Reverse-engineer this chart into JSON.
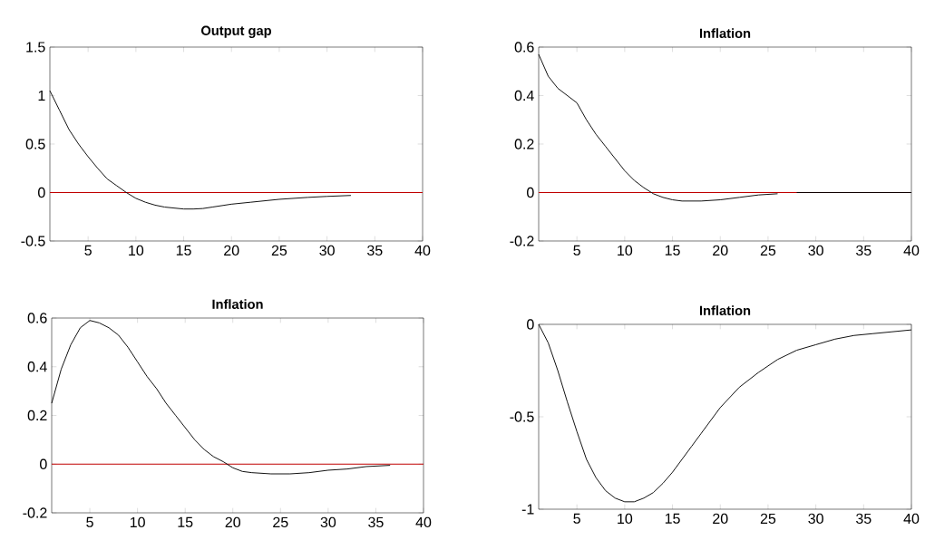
{
  "chart_data": [
    {
      "type": "line",
      "title": "Output gap",
      "xlim": [
        1,
        40
      ],
      "ylim": [
        -0.5,
        1.5
      ],
      "xticks": [
        5,
        10,
        15,
        20,
        25,
        30,
        35,
        40
      ],
      "yticks": [
        -0.5,
        0,
        0.5,
        1,
        1.5
      ],
      "ref_lines": [
        {
          "axis": "y",
          "value": 0,
          "color": "#c00000"
        }
      ],
      "series": [
        {
          "color": "#000000",
          "x": [
            1,
            2,
            3,
            4,
            5,
            6,
            7,
            8,
            9,
            10,
            11,
            12,
            13,
            14,
            15,
            16,
            17,
            18,
            20,
            22,
            25,
            28,
            30,
            32.5
          ],
          "values": [
            1.05,
            0.85,
            0.65,
            0.5,
            0.37,
            0.25,
            0.14,
            0.07,
            0.0,
            -0.06,
            -0.1,
            -0.13,
            -0.15,
            -0.16,
            -0.17,
            -0.17,
            -0.165,
            -0.15,
            -0.12,
            -0.1,
            -0.07,
            -0.05,
            -0.04,
            -0.03
          ]
        }
      ]
    },
    {
      "type": "line",
      "title": "Inflation",
      "xlim": [
        1,
        40
      ],
      "ylim": [
        -0.2,
        0.6
      ],
      "xticks": [
        5,
        10,
        15,
        20,
        25,
        30,
        35,
        40
      ],
      "yticks": [
        -0.2,
        0,
        0.2,
        0.4,
        0.6
      ],
      "ref_lines": [
        {
          "axis": "y",
          "value": 0,
          "color": "#c00000"
        }
      ],
      "series": [
        {
          "color": "#000000",
          "x": [
            1,
            2,
            3,
            4,
            5,
            6,
            7,
            8,
            9,
            10,
            11,
            12,
            13,
            14,
            15,
            16,
            18,
            20,
            22,
            24,
            26,
            27,
            28,
            40
          ],
          "values": [
            0.57,
            0.48,
            0.43,
            0.4,
            0.37,
            0.3,
            0.24,
            0.19,
            0.14,
            0.09,
            0.05,
            0.02,
            -0.005,
            -0.02,
            -0.03,
            -0.035,
            -0.035,
            -0.03,
            -0.02,
            -0.01,
            -0.005,
            null,
            0.0,
            0.0
          ]
        }
      ]
    },
    {
      "type": "line",
      "title": "Inflation",
      "xlim": [
        1,
        40
      ],
      "ylim": [
        -0.2,
        0.6
      ],
      "xticks": [
        5,
        10,
        15,
        20,
        25,
        30,
        35,
        40
      ],
      "yticks": [
        -0.2,
        0,
        0.2,
        0.4,
        0.6
      ],
      "ref_lines": [
        {
          "axis": "y",
          "value": 0,
          "color": "#c00000"
        }
      ],
      "series": [
        {
          "color": "#000000",
          "x": [
            1,
            2,
            3,
            4,
            5,
            6,
            7,
            8,
            9,
            10,
            11,
            12,
            13,
            14,
            15,
            16,
            17,
            18,
            19,
            20,
            21,
            22,
            24,
            26,
            28,
            30,
            32,
            34,
            36.5
          ],
          "values": [
            0.25,
            0.39,
            0.49,
            0.56,
            0.59,
            0.58,
            0.56,
            0.53,
            0.48,
            0.42,
            0.36,
            0.31,
            0.25,
            0.2,
            0.15,
            0.1,
            0.06,
            0.03,
            0.01,
            -0.015,
            -0.03,
            -0.035,
            -0.04,
            -0.04,
            -0.035,
            -0.025,
            -0.02,
            -0.01,
            -0.005
          ]
        }
      ]
    },
    {
      "type": "line",
      "title": "Inflation",
      "xlim": [
        1,
        40
      ],
      "ylim": [
        -1,
        0
      ],
      "xticks": [
        5,
        10,
        15,
        20,
        25,
        30,
        35,
        40
      ],
      "yticks": [
        -1,
        -0.5,
        0
      ],
      "series": [
        {
          "color": "#000000",
          "x": [
            1,
            2,
            3,
            4,
            5,
            6,
            7,
            8,
            9,
            10,
            11,
            12,
            13,
            14,
            15,
            16,
            17,
            18,
            19,
            20,
            22,
            24,
            26,
            28,
            30,
            32,
            34,
            36,
            38,
            40
          ],
          "values": [
            0,
            -0.1,
            -0.25,
            -0.42,
            -0.58,
            -0.73,
            -0.83,
            -0.9,
            -0.94,
            -0.96,
            -0.96,
            -0.94,
            -0.91,
            -0.86,
            -0.8,
            -0.73,
            -0.66,
            -0.59,
            -0.52,
            -0.45,
            -0.34,
            -0.26,
            -0.19,
            -0.14,
            -0.11,
            -0.08,
            -0.06,
            -0.05,
            -0.04,
            -0.03
          ]
        }
      ]
    }
  ]
}
